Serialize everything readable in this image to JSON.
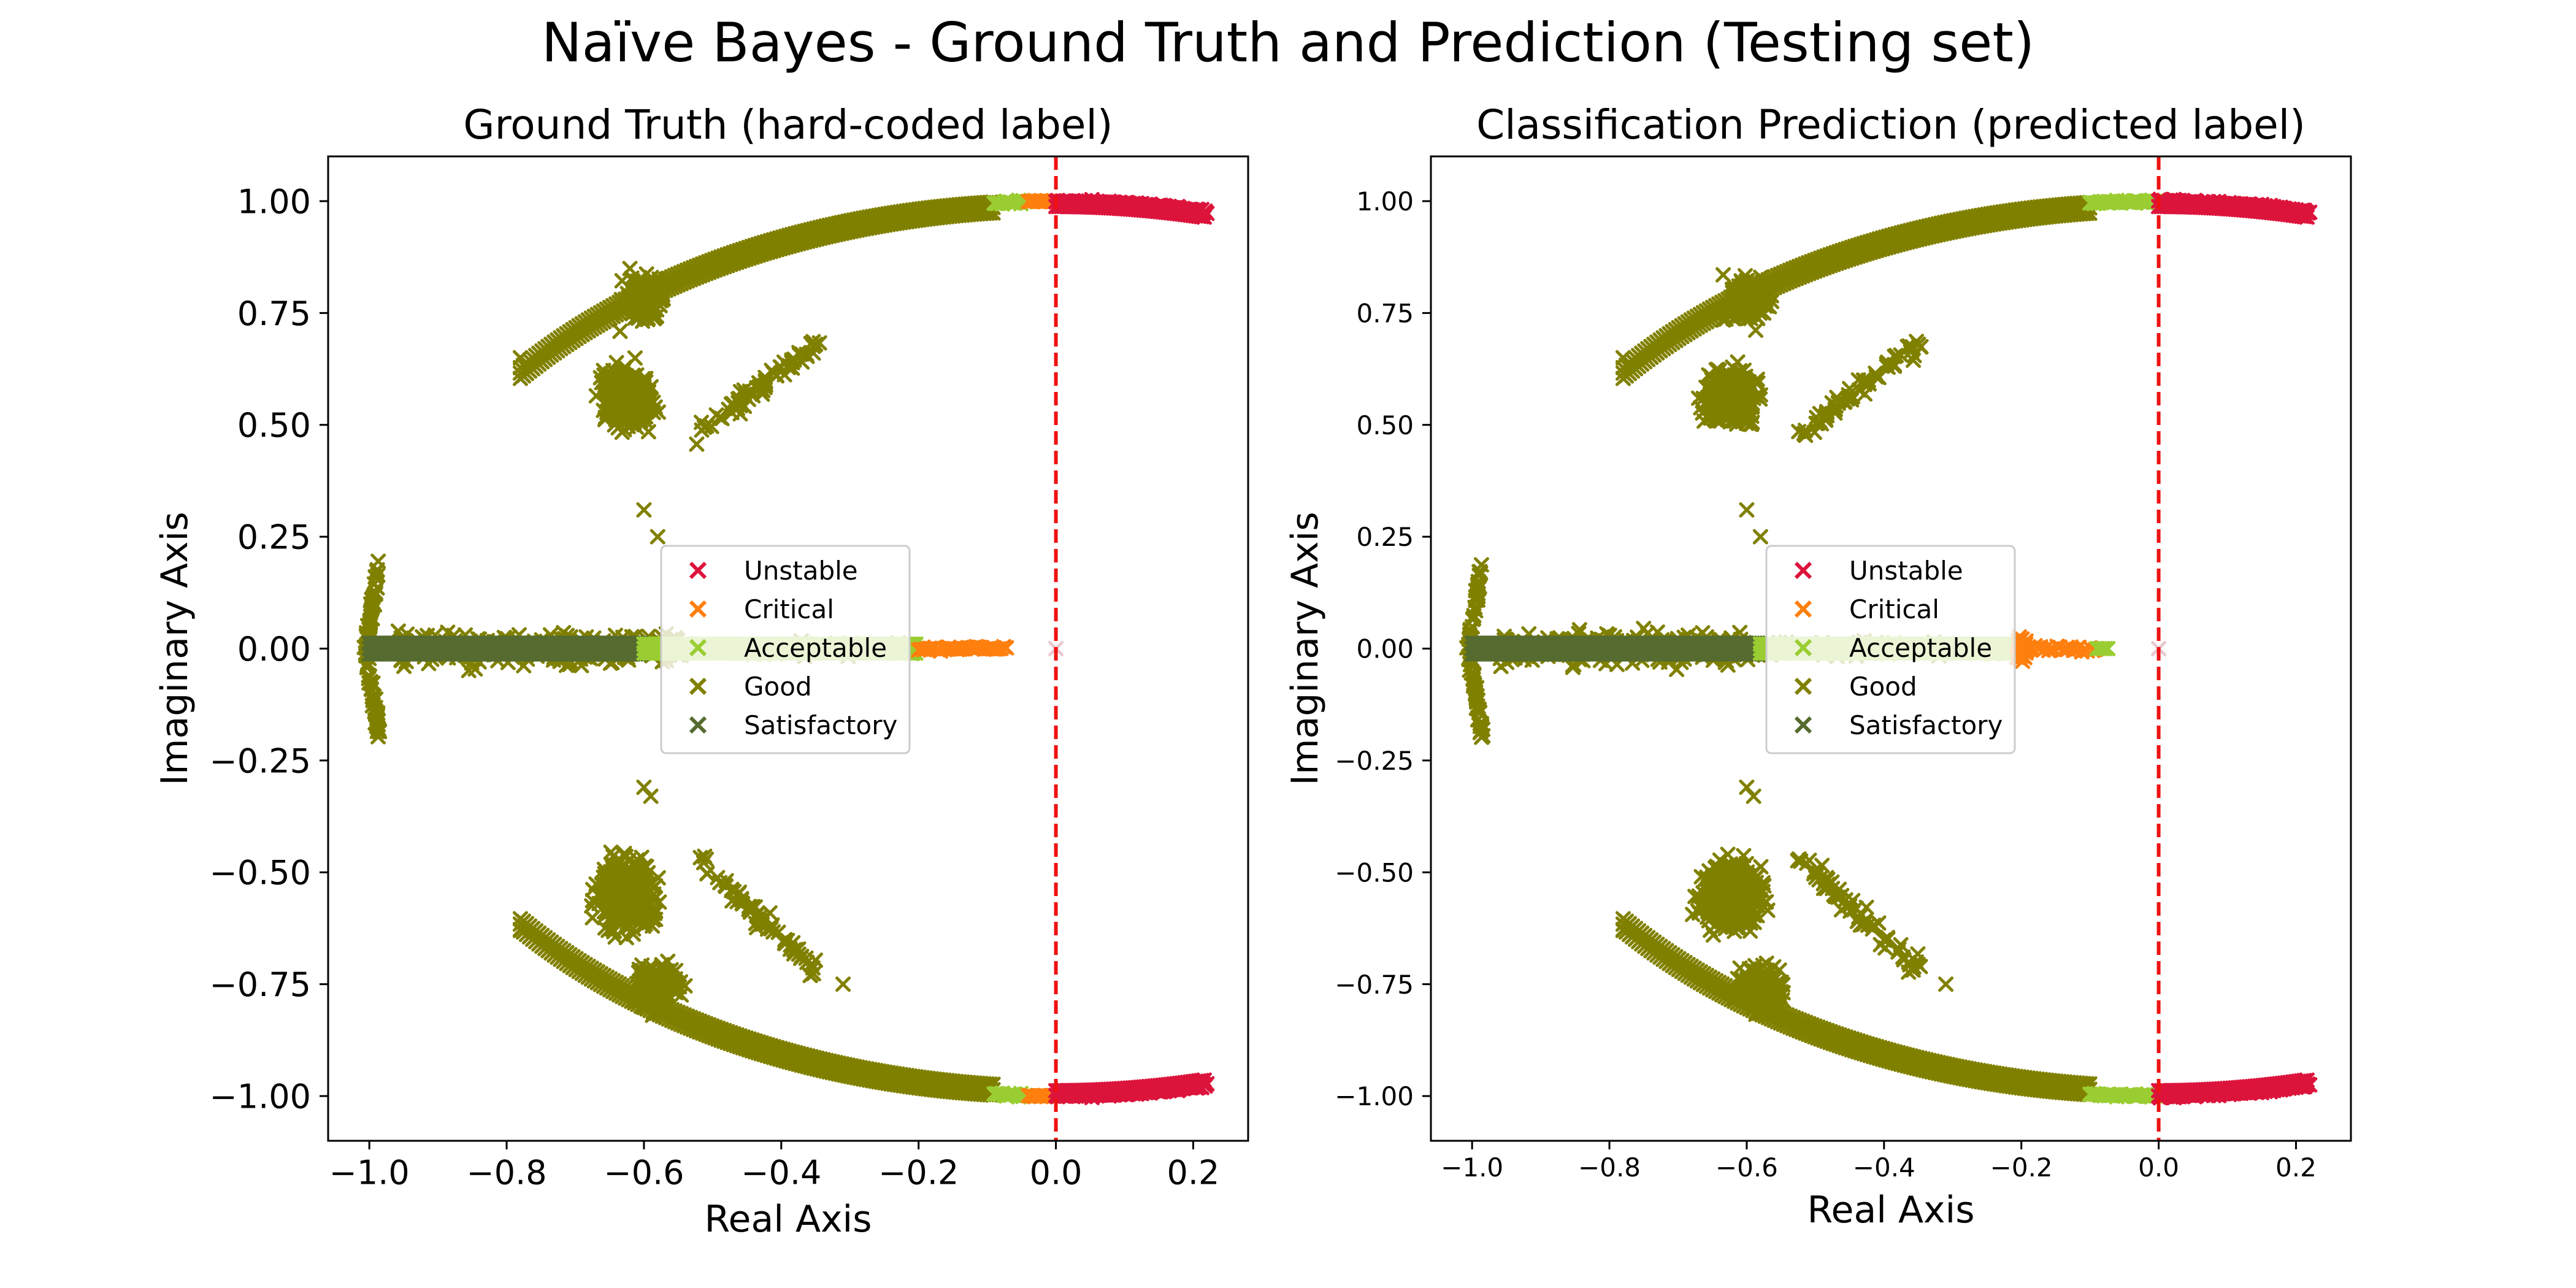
{
  "figure": {
    "suptitle": "Naïve Bayes - Ground Truth and Prediction (Testing set)"
  },
  "colors": {
    "Unstable": "#dc143c",
    "Critical": "#ff7f0e",
    "Acceptable": "#9acd32",
    "Good": "#808000",
    "Satisfactory": "#556b2f",
    "Reference line": "#ee1111"
  },
  "chart_data": [
    {
      "type": "scatter",
      "title": "Ground Truth (hard-coded label)",
      "xlabel": "Real Axis",
      "ylabel": "Imaginary Axis",
      "xlim": [
        -1.06,
        0.28
      ],
      "ylim": [
        -1.1,
        1.1
      ],
      "xticks": [
        "−1.0",
        "−0.8",
        "−0.6",
        "−0.4",
        "−0.2",
        "0.0",
        "0.2"
      ],
      "yticks": [
        "−1.00",
        "−0.75",
        "−0.50",
        "−0.25",
        "0.00",
        "0.25",
        "0.50",
        "0.75",
        "1.00"
      ],
      "marker": "x",
      "grid": false,
      "reference_line": {
        "x": 0.0,
        "style": "dashed"
      },
      "legend": {
        "placement": "center",
        "entries": [
          "Unstable",
          "Critical",
          "Acceptable",
          "Good",
          "Satisfactory"
        ]
      },
      "boundaries": {
        "acceptable": [
          -0.09,
          -0.04
        ],
        "critical": [
          -0.04,
          0.0
        ],
        "axis_acceptable_end": -0.6,
        "axis_critical_start": -0.2,
        "axis_critical_end": -0.07
      },
      "series": [
        {
          "name": "Unstable",
          "description_ranges": {
            "x": [
              0.0,
              0.22
            ]
          },
          "points": [
            [
              0.0,
              1.0
            ],
            [
              0.05,
              0.999
            ],
            [
              0.1,
              0.995
            ],
            [
              0.15,
              0.989
            ],
            [
              0.2,
              0.98
            ],
            [
              0.22,
              0.976
            ],
            [
              0.0,
              -1.0
            ],
            [
              0.05,
              -0.999
            ],
            [
              0.1,
              -0.995
            ],
            [
              0.15,
              -0.989
            ],
            [
              0.2,
              -0.98
            ],
            [
              0.22,
              -0.976
            ]
          ]
        },
        {
          "name": "Critical",
          "points": [
            [
              -0.04,
              0.999
            ],
            [
              -0.02,
              1.0
            ],
            [
              -0.04,
              -0.999
            ],
            [
              -0.02,
              -1.0
            ],
            [
              -0.2,
              0.0
            ],
            [
              -0.17,
              0.0
            ],
            [
              -0.14,
              0.0
            ],
            [
              -0.11,
              0.0
            ],
            [
              -0.08,
              0.0
            ]
          ]
        },
        {
          "name": "Acceptable",
          "points": [
            [
              -0.09,
              0.996
            ],
            [
              -0.06,
              0.998
            ],
            [
              -0.09,
              -0.996
            ],
            [
              -0.06,
              -0.998
            ],
            [
              -0.6,
              0.0
            ],
            [
              -0.5,
              0.0
            ],
            [
              -0.4,
              0.0
            ],
            [
              -0.3,
              0.0
            ],
            [
              -0.22,
              0.0
            ]
          ]
        },
        {
          "name": "Good",
          "points": [
            [
              -0.78,
              0.65
            ],
            [
              -0.6,
              0.8
            ],
            [
              -0.4,
              0.92
            ],
            [
              -0.2,
              0.98
            ],
            [
              -0.78,
              -0.63
            ],
            [
              -0.6,
              -0.8
            ],
            [
              -0.4,
              -0.92
            ],
            [
              -0.2,
              -0.98
            ],
            [
              -0.62,
              0.57
            ],
            [
              -0.6,
              0.5
            ],
            [
              -0.64,
              0.6
            ],
            [
              -0.62,
              -0.55
            ],
            [
              -0.6,
              -0.48
            ],
            [
              -0.64,
              -0.58
            ],
            [
              -0.5,
              0.48
            ],
            [
              -0.4,
              0.55
            ],
            [
              -0.35,
              0.68
            ],
            [
              -0.5,
              -0.48
            ],
            [
              -0.4,
              -0.58
            ],
            [
              -0.31,
              -0.75
            ],
            [
              -0.98,
              0.2
            ],
            [
              -0.98,
              -0.2
            ],
            [
              -0.9,
              0.08
            ],
            [
              -0.85,
              -0.08
            ],
            [
              -0.6,
              0.31
            ],
            [
              -0.6,
              -0.31
            ]
          ]
        },
        {
          "name": "Satisfactory",
          "points": [
            [
              -1.0,
              0.0
            ],
            [
              -0.9,
              0.0
            ],
            [
              -0.8,
              0.0
            ],
            [
              -0.7,
              0.0
            ],
            [
              -0.6,
              0.0
            ]
          ]
        }
      ]
    },
    {
      "type": "scatter",
      "title": "Classification Prediction (predicted label)",
      "xlabel": "Real Axis",
      "ylabel": "Imaginary Axis",
      "xlim": [
        -1.06,
        0.28
      ],
      "ylim": [
        -1.1,
        1.1
      ],
      "xticks": [
        "−1.0",
        "−0.8",
        "−0.6",
        "−0.4",
        "−0.2",
        "0.0",
        "0.2"
      ],
      "yticks": [
        "−1.00",
        "−0.75",
        "−0.50",
        "−0.25",
        "0.00",
        "0.25",
        "0.50",
        "0.75",
        "1.00"
      ],
      "marker": "x",
      "grid": false,
      "reference_line": {
        "x": 0.0,
        "style": "dashed"
      },
      "legend": {
        "placement": "center",
        "entries": [
          "Unstable",
          "Critical",
          "Acceptable",
          "Good",
          "Satisfactory"
        ]
      },
      "boundaries": {
        "acceptable": [
          -0.1,
          0.0
        ],
        "critical": [
          0.0,
          0.0
        ],
        "axis_acceptable_end": -0.58,
        "axis_critical_start": -0.2,
        "axis_critical_end": -0.09
      },
      "series": [
        {
          "name": "Unstable",
          "points": [
            [
              0.0,
              1.0
            ],
            [
              0.05,
              0.999
            ],
            [
              0.1,
              0.995
            ],
            [
              0.15,
              0.989
            ],
            [
              0.2,
              0.98
            ],
            [
              0.22,
              0.976
            ],
            [
              0.0,
              -1.0
            ],
            [
              0.05,
              -0.999
            ],
            [
              0.1,
              -0.995
            ],
            [
              0.15,
              -0.989
            ],
            [
              0.2,
              -0.98
            ],
            [
              0.22,
              -0.976
            ]
          ]
        },
        {
          "name": "Critical",
          "points": [
            [
              -0.2,
              0.07
            ],
            [
              -0.2,
              -0.07
            ],
            [
              -0.2,
              0.0
            ],
            [
              -0.17,
              0.0
            ],
            [
              -0.14,
              0.0
            ],
            [
              -0.11,
              0.0
            ]
          ]
        },
        {
          "name": "Acceptable",
          "points": [
            [
              -0.1,
              0.995
            ],
            [
              -0.05,
              0.999
            ],
            [
              -0.1,
              -0.995
            ],
            [
              -0.05,
              -0.999
            ],
            [
              -0.58,
              0.0
            ],
            [
              -0.45,
              0.0
            ],
            [
              -0.3,
              0.0
            ],
            [
              -0.22,
              0.0
            ],
            [
              -0.08,
              0.0
            ]
          ]
        },
        {
          "name": "Good",
          "points": [
            [
              -0.78,
              0.65
            ],
            [
              -0.6,
              0.8
            ],
            [
              -0.4,
              0.92
            ],
            [
              -0.2,
              0.98
            ],
            [
              -0.78,
              -0.63
            ],
            [
              -0.6,
              -0.8
            ],
            [
              -0.4,
              -0.92
            ],
            [
              -0.2,
              -0.98
            ],
            [
              -0.62,
              0.57
            ],
            [
              -0.6,
              0.5
            ],
            [
              -0.64,
              0.6
            ],
            [
              -0.62,
              -0.55
            ],
            [
              -0.6,
              -0.48
            ],
            [
              -0.64,
              -0.58
            ],
            [
              -0.5,
              0.48
            ],
            [
              -0.4,
              0.55
            ],
            [
              -0.35,
              0.68
            ],
            [
              -0.5,
              -0.48
            ],
            [
              -0.4,
              -0.58
            ],
            [
              -0.31,
              -0.75
            ],
            [
              -0.98,
              0.2
            ],
            [
              -0.98,
              -0.2
            ],
            [
              -0.9,
              0.08
            ],
            [
              -0.85,
              -0.08
            ],
            [
              -0.6,
              0.31
            ],
            [
              -0.6,
              -0.31
            ]
          ]
        },
        {
          "name": "Satisfactory",
          "points": [
            [
              -1.0,
              0.0
            ],
            [
              -0.9,
              0.0
            ],
            [
              -0.8,
              0.0
            ],
            [
              -0.7,
              0.0
            ],
            [
              -0.6,
              0.0
            ]
          ]
        }
      ]
    }
  ]
}
